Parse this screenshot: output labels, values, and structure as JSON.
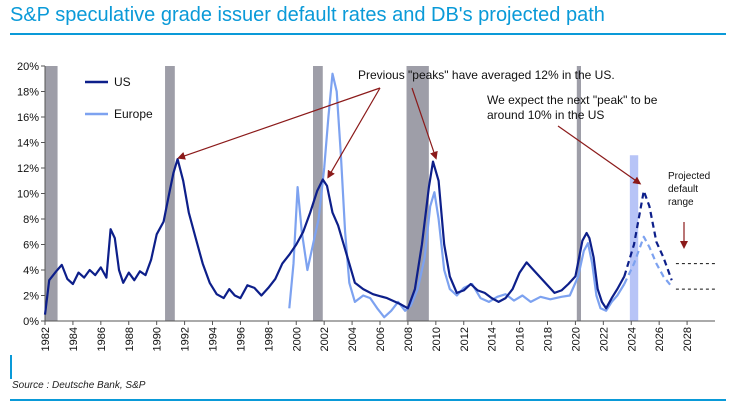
{
  "title": "S&P speculative grade issuer default rates and DB's projected path",
  "source": "Source : Deutsche Bank, S&P",
  "colors": {
    "title": "#0a9ad8",
    "us": "#0d1f8a",
    "europe": "#7da2f0",
    "recession": "#9e9ea8",
    "forecast_bar": "#b7c4f7",
    "annotation": "#8b1a1a"
  },
  "chart_data": {
    "type": "line",
    "title": "S&P speculative grade issuer default rates and DB's projected path",
    "xlabel": "",
    "ylabel": "",
    "xlim": [
      1982,
      2030
    ],
    "ylim": [
      0,
      20
    ],
    "x_ticks": [
      1982,
      1984,
      1986,
      1988,
      1990,
      1992,
      1994,
      1996,
      1998,
      2000,
      2002,
      2004,
      2006,
      2008,
      2010,
      2012,
      2014,
      2016,
      2018,
      2020,
      2022,
      2024,
      2026,
      2028
    ],
    "y_ticks": [
      0,
      2,
      4,
      6,
      8,
      10,
      12,
      14,
      16,
      18,
      20
    ],
    "y_tick_labels": [
      "0%",
      "2%",
      "4%",
      "6%",
      "8%",
      "10%",
      "12%",
      "14%",
      "16%",
      "18%",
      "20%"
    ],
    "legend": [
      {
        "name": "US",
        "style": "line"
      },
      {
        "name": "Europe",
        "style": "line"
      }
    ],
    "recession_bands": [
      [
        1982.0,
        1982.9
      ],
      [
        1990.6,
        1991.3
      ],
      [
        2001.2,
        2001.9
      ],
      [
        2007.9,
        2009.5
      ],
      [
        2020.1,
        2020.4
      ]
    ],
    "forecast_band": [
      2023.9,
      2024.5
    ],
    "series": [
      {
        "name": "US",
        "points": [
          [
            1982.0,
            0.5
          ],
          [
            1982.3,
            3.2
          ],
          [
            1982.8,
            3.9
          ],
          [
            1983.2,
            4.4
          ],
          [
            1983.6,
            3.3
          ],
          [
            1984.0,
            2.9
          ],
          [
            1984.4,
            3.8
          ],
          [
            1984.8,
            3.4
          ],
          [
            1985.2,
            4.0
          ],
          [
            1985.6,
            3.6
          ],
          [
            1986.0,
            4.2
          ],
          [
            1986.4,
            3.4
          ],
          [
            1986.7,
            7.2
          ],
          [
            1987.0,
            6.5
          ],
          [
            1987.3,
            4.0
          ],
          [
            1987.6,
            3.0
          ],
          [
            1988.0,
            3.8
          ],
          [
            1988.4,
            3.2
          ],
          [
            1988.8,
            3.9
          ],
          [
            1989.2,
            3.6
          ],
          [
            1989.6,
            4.8
          ],
          [
            1990.0,
            6.8
          ],
          [
            1990.5,
            7.8
          ],
          [
            1990.9,
            10.0
          ],
          [
            1991.2,
            11.6
          ],
          [
            1991.5,
            12.7
          ],
          [
            1991.9,
            11.0
          ],
          [
            1992.3,
            8.5
          ],
          [
            1992.8,
            6.5
          ],
          [
            1993.3,
            4.5
          ],
          [
            1993.8,
            3.0
          ],
          [
            1994.3,
            2.1
          ],
          [
            1994.8,
            1.8
          ],
          [
            1995.2,
            2.5
          ],
          [
            1995.6,
            2.0
          ],
          [
            1996.0,
            1.8
          ],
          [
            1996.5,
            2.8
          ],
          [
            1997.0,
            2.6
          ],
          [
            1997.5,
            2.0
          ],
          [
            1998.0,
            2.6
          ],
          [
            1998.5,
            3.3
          ],
          [
            1999.0,
            4.5
          ],
          [
            1999.5,
            5.2
          ],
          [
            2000.0,
            6.0
          ],
          [
            2000.5,
            7.0
          ],
          [
            2001.0,
            8.5
          ],
          [
            2001.5,
            10.2
          ],
          [
            2001.9,
            11.1
          ],
          [
            2002.2,
            10.6
          ],
          [
            2002.6,
            8.5
          ],
          [
            2003.0,
            7.5
          ],
          [
            2003.4,
            6.0
          ],
          [
            2003.8,
            4.5
          ],
          [
            2004.2,
            3.0
          ],
          [
            2004.8,
            2.5
          ],
          [
            2005.5,
            2.1
          ],
          [
            2006.5,
            1.8
          ],
          [
            2007.5,
            1.3
          ],
          [
            2008.0,
            1.0
          ],
          [
            2008.5,
            2.5
          ],
          [
            2009.0,
            6.0
          ],
          [
            2009.5,
            10.5
          ],
          [
            2009.8,
            12.5
          ],
          [
            2010.2,
            11.0
          ],
          [
            2010.6,
            6.0
          ],
          [
            2011.0,
            3.5
          ],
          [
            2011.5,
            2.2
          ],
          [
            2012.0,
            2.4
          ],
          [
            2012.5,
            2.9
          ],
          [
            2013.0,
            2.4
          ],
          [
            2013.5,
            2.2
          ],
          [
            2014.0,
            1.8
          ],
          [
            2014.5,
            1.5
          ],
          [
            2015.0,
            1.8
          ],
          [
            2015.5,
            2.5
          ],
          [
            2016.0,
            3.8
          ],
          [
            2016.5,
            4.6
          ],
          [
            2017.0,
            4.0
          ],
          [
            2017.5,
            3.4
          ],
          [
            2018.0,
            2.8
          ],
          [
            2018.5,
            2.2
          ],
          [
            2019.0,
            2.4
          ],
          [
            2019.5,
            2.9
          ],
          [
            2020.0,
            3.5
          ],
          [
            2020.5,
            6.3
          ],
          [
            2020.8,
            6.9
          ],
          [
            2021.0,
            6.5
          ],
          [
            2021.3,
            5.0
          ],
          [
            2021.6,
            2.5
          ],
          [
            2021.9,
            1.5
          ],
          [
            2022.2,
            1.0
          ],
          [
            2022.6,
            1.8
          ],
          [
            2023.0,
            2.5
          ],
          [
            2023.5,
            3.5
          ]
        ]
      },
      {
        "name": "Europe",
        "points": [
          [
            1999.5,
            1.0
          ],
          [
            1999.8,
            4.5
          ],
          [
            2000.1,
            10.5
          ],
          [
            2000.4,
            7.0
          ],
          [
            2000.8,
            4.0
          ],
          [
            2001.2,
            6.0
          ],
          [
            2001.6,
            8.0
          ],
          [
            2002.0,
            12.0
          ],
          [
            2002.3,
            16.0
          ],
          [
            2002.6,
            19.4
          ],
          [
            2002.9,
            18.0
          ],
          [
            2003.2,
            13.0
          ],
          [
            2003.5,
            7.0
          ],
          [
            2003.8,
            3.0
          ],
          [
            2004.2,
            1.5
          ],
          [
            2004.8,
            2.0
          ],
          [
            2005.3,
            1.8
          ],
          [
            2005.8,
            1.0
          ],
          [
            2006.3,
            0.3
          ],
          [
            2006.8,
            0.8
          ],
          [
            2007.3,
            1.5
          ],
          [
            2007.8,
            0.8
          ],
          [
            2008.2,
            1.2
          ],
          [
            2008.7,
            2.5
          ],
          [
            2009.2,
            5.0
          ],
          [
            2009.6,
            9.0
          ],
          [
            2009.9,
            10.1
          ],
          [
            2010.2,
            8.0
          ],
          [
            2010.6,
            4.0
          ],
          [
            2011.0,
            2.5
          ],
          [
            2011.5,
            2.0
          ],
          [
            2012.0,
            2.6
          ],
          [
            2012.6,
            2.9
          ],
          [
            2013.2,
            1.8
          ],
          [
            2013.8,
            1.5
          ],
          [
            2014.4,
            1.9
          ],
          [
            2015.0,
            2.1
          ],
          [
            2015.6,
            1.6
          ],
          [
            2016.2,
            2.0
          ],
          [
            2016.8,
            1.5
          ],
          [
            2017.5,
            1.9
          ],
          [
            2018.2,
            1.7
          ],
          [
            2019.0,
            1.9
          ],
          [
            2019.6,
            2.0
          ],
          [
            2020.2,
            3.5
          ],
          [
            2020.6,
            5.5
          ],
          [
            2020.9,
            6.1
          ],
          [
            2021.2,
            4.5
          ],
          [
            2021.5,
            2.0
          ],
          [
            2021.8,
            1.0
          ],
          [
            2022.2,
            0.8
          ],
          [
            2022.6,
            1.5
          ],
          [
            2023.0,
            2.0
          ],
          [
            2023.5,
            2.9
          ]
        ]
      },
      {
        "name": "US projected",
        "dashed": true,
        "points": [
          [
            2023.5,
            3.5
          ],
          [
            2024.2,
            6.0
          ],
          [
            2024.9,
            10.2
          ],
          [
            2025.3,
            9.0
          ],
          [
            2025.8,
            6.2
          ],
          [
            2026.3,
            5.0
          ],
          [
            2026.9,
            3.2
          ]
        ]
      },
      {
        "name": "Europe projected",
        "dashed": true,
        "points": [
          [
            2023.5,
            2.9
          ],
          [
            2024.2,
            4.5
          ],
          [
            2024.9,
            6.6
          ],
          [
            2025.3,
            5.8
          ],
          [
            2025.8,
            4.5
          ],
          [
            2026.3,
            3.5
          ],
          [
            2026.9,
            2.7
          ]
        ]
      }
    ],
    "projected_range": [
      2.5,
      4.5
    ],
    "annotations": [
      {
        "text": "Previous \"peaks\" have averaged 12% in the US."
      },
      {
        "text": "We expect the next \"peak\" to be"
      },
      {
        "text": "around 10% in the US"
      },
      {
        "text": "Projected"
      },
      {
        "text": "default"
      },
      {
        "text": "range"
      }
    ]
  }
}
